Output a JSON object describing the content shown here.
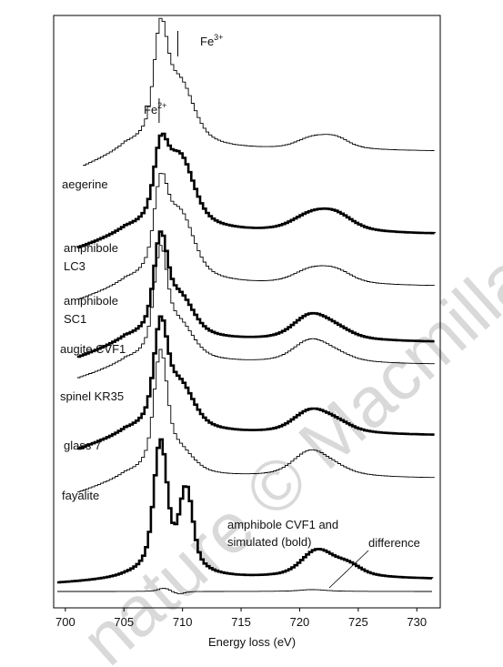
{
  "watermark": "nature © Macmillan",
  "chart_data": {
    "type": "line",
    "xlabel": "Energy loss (eV)",
    "ylabel": "",
    "xlim": [
      699,
      732
    ],
    "x_ticks": [
      700,
      705,
      710,
      715,
      720,
      725,
      730
    ],
    "grid": false,
    "peak_markers": [
      {
        "label": "Fe",
        "sup": "2+",
        "x": 708.0
      },
      {
        "label": "Fe",
        "sup": "3+",
        "x": 709.6
      }
    ],
    "annotations": {
      "pair_label_line1": "amphibole CVF1 and",
      "pair_label_line2": "simulated (bold)",
      "difference_label": "difference"
    },
    "series": [
      {
        "name": "aegerine",
        "label_lines": [
          "aegerine"
        ],
        "bold": false,
        "x_start": 701.5,
        "baseline": 0.22,
        "peaks": [
          [
            708.0,
            0.5,
            0.9
          ],
          [
            709.6,
            1.1,
            0.55
          ],
          [
            721.0,
            1.2,
            0.1
          ],
          [
            723.0,
            1.0,
            0.09
          ]
        ]
      },
      {
        "name": "amphibole LC3",
        "label_lines": [
          "amphibole",
          "LC3"
        ],
        "bold": true,
        "x_start": 701.0,
        "baseline": 0.2,
        "peaks": [
          [
            708.0,
            0.5,
            0.55
          ],
          [
            709.6,
            1.1,
            0.65
          ],
          [
            720.8,
            1.4,
            0.14
          ],
          [
            723.0,
            1.3,
            0.14
          ]
        ]
      },
      {
        "name": "amphibole SC1",
        "label_lines": [
          "amphibole",
          "SC1"
        ],
        "bold": false,
        "x_start": 701.0,
        "baseline": 0.2,
        "peaks": [
          [
            708.0,
            0.5,
            0.7
          ],
          [
            709.6,
            1.1,
            0.6
          ],
          [
            720.8,
            1.3,
            0.12
          ],
          [
            723.0,
            1.2,
            0.11
          ]
        ]
      },
      {
        "name": "augite CVF1",
        "label_lines": [
          "augite CVF1"
        ],
        "bold": true,
        "x_start": 701.0,
        "baseline": 0.22,
        "peaks": [
          [
            708.0,
            0.5,
            0.8
          ],
          [
            709.6,
            1.1,
            0.35
          ],
          [
            720.8,
            1.3,
            0.22
          ],
          [
            723.0,
            1.2,
            0.08
          ]
        ]
      },
      {
        "name": "spinel KR35",
        "label_lines": [
          "spinel KR35"
        ],
        "bold": false,
        "x_start": 701.0,
        "baseline": 0.2,
        "peaks": [
          [
            708.0,
            0.5,
            0.9
          ],
          [
            709.6,
            1.1,
            0.3
          ],
          [
            720.8,
            1.3,
            0.2
          ],
          [
            723.0,
            1.2,
            0.06
          ]
        ]
      },
      {
        "name": "glass 7",
        "label_lines": [
          "glass 7"
        ],
        "bold": true,
        "x_start": 701.0,
        "baseline": 0.2,
        "peaks": [
          [
            708.0,
            0.5,
            0.85
          ],
          [
            709.6,
            1.1,
            0.4
          ],
          [
            720.8,
            1.3,
            0.2
          ],
          [
            723.0,
            1.2,
            0.08
          ]
        ]
      },
      {
        "name": "fayalite",
        "label_lines": [
          "fayalite"
        ],
        "bold": false,
        "x_start": 701.0,
        "baseline": 0.2,
        "peaks": [
          [
            708.0,
            0.5,
            1.0
          ],
          [
            709.6,
            1.1,
            0.18
          ],
          [
            720.8,
            1.3,
            0.22
          ],
          [
            723.0,
            1.2,
            0.05
          ]
        ]
      },
      {
        "name": "amphibole CVF1",
        "label_lines": [],
        "bold": false,
        "x_start": 699.3,
        "baseline": 0.05,
        "peaks": [
          [
            708.0,
            0.5,
            1.2
          ],
          [
            710.2,
            0.5,
            0.75
          ],
          [
            721.4,
            1.2,
            0.25
          ],
          [
            724.0,
            1.0,
            0.1
          ]
        ]
      },
      {
        "name": "simulated",
        "label_lines": [],
        "bold": true,
        "x_start": 699.3,
        "baseline": 0.05,
        "peaks": [
          [
            708.0,
            0.5,
            1.2
          ],
          [
            710.2,
            0.5,
            0.75
          ],
          [
            721.4,
            1.2,
            0.25
          ],
          [
            724.0,
            1.0,
            0.1
          ]
        ]
      },
      {
        "name": "difference",
        "label_lines": [],
        "bold": false,
        "x_start": 699.3,
        "baseline": 0.0,
        "peaks": [
          [
            708.3,
            0.4,
            0.04
          ],
          [
            709.6,
            0.4,
            -0.03
          ],
          [
            721.0,
            1.0,
            0.02
          ]
        ]
      }
    ]
  }
}
